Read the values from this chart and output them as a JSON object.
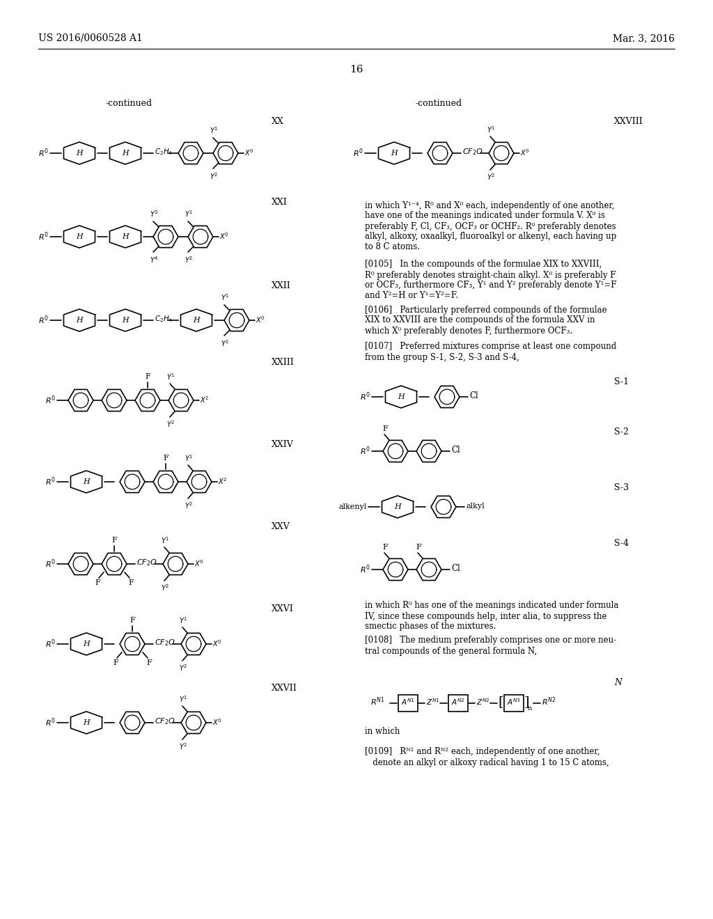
{
  "page_number": "16",
  "patent_number": "US 2016/0060528 A1",
  "patent_date": "Mar. 3, 2016",
  "bg_color": "#ffffff",
  "text_color": "#000000",
  "font_size_header": 10,
  "font_size_label": 9,
  "font_size_body": 8.5
}
